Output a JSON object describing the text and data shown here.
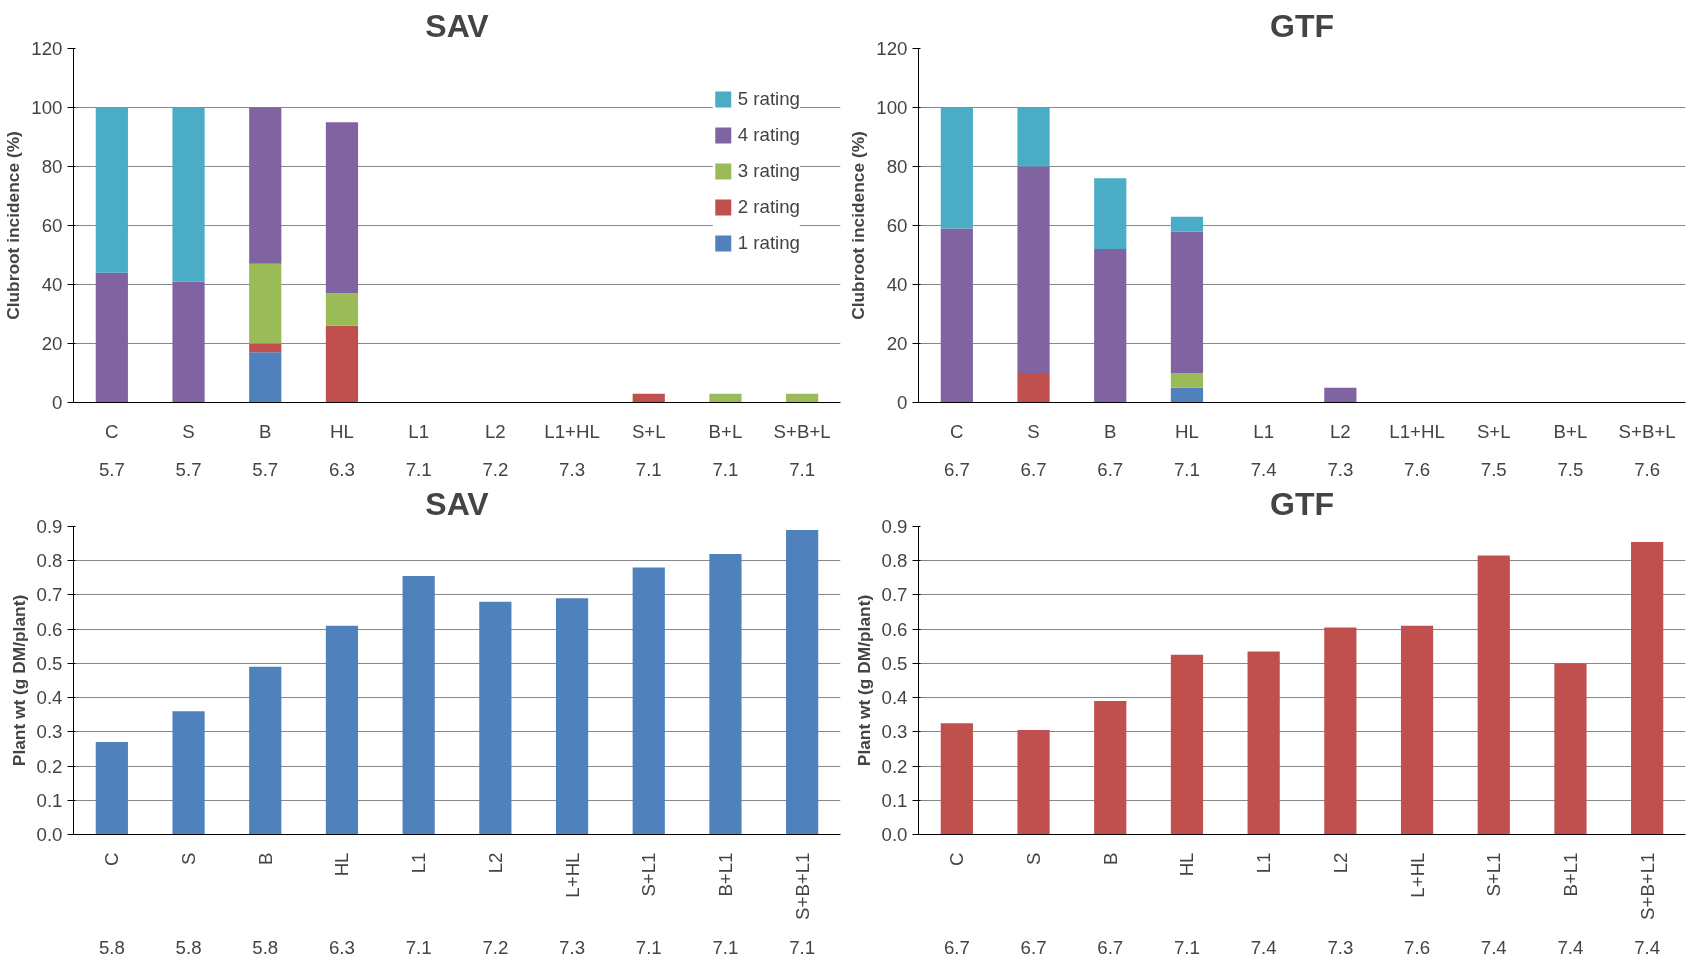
{
  "chart_data": [
    {
      "type": "bar",
      "stacked": true,
      "title": "SAV",
      "ylabel": "Clubroot incidence (%)",
      "categories": [
        "C\n5.7",
        "S\n5.7",
        "B\n5.7",
        "HL\n6.3",
        "L1\n7.1",
        "L2\n7.2",
        "L1+HL\n7.3",
        "S+L\n7.1",
        "B+L\n7.1",
        "S+B+L\n7.1"
      ],
      "ylim": [
        0,
        120
      ],
      "yticks": [
        0,
        20,
        40,
        60,
        80,
        100,
        120
      ],
      "grid": "y",
      "legend": "top right",
      "series": [
        {
          "name": "1 rating",
          "color": "#4f81bd",
          "values": [
            0,
            0,
            17,
            0,
            0,
            0,
            0,
            0,
            0,
            0
          ]
        },
        {
          "name": "2 rating",
          "color": "#c0504d",
          "values": [
            0,
            0,
            3,
            26,
            0,
            0,
            0,
            3,
            0,
            0
          ]
        },
        {
          "name": "3 rating",
          "color": "#9bbb59",
          "values": [
            0,
            0,
            27,
            11,
            0,
            0,
            0,
            0,
            3,
            3
          ]
        },
        {
          "name": "4 rating",
          "color": "#8064a2",
          "values": [
            44,
            41,
            53,
            58,
            0,
            0,
            0,
            0,
            0,
            0
          ]
        },
        {
          "name": "5 rating",
          "color": "#4bacc6",
          "values": [
            56,
            59,
            0,
            0,
            0,
            0,
            0,
            0,
            0,
            0
          ]
        }
      ]
    },
    {
      "type": "bar",
      "stacked": true,
      "title": "GTF",
      "ylabel": "Clubroot incidence (%)",
      "categories": [
        "C\n6.7",
        "S\n6.7",
        "B\n6.7",
        "HL\n7.1",
        "L1\n7.4",
        "L2\n7.3",
        "L1+HL\n7.6",
        "S+L\n7.5",
        "B+L\n7.5",
        "S+B+L\n7.6"
      ],
      "ylim": [
        0,
        120
      ],
      "yticks": [
        0,
        20,
        40,
        60,
        80,
        100,
        120
      ],
      "grid": "y",
      "series": [
        {
          "color": "#4f81bd",
          "values": [
            0,
            0,
            0,
            5,
            0,
            0,
            0,
            0,
            0,
            0
          ]
        },
        {
          "color": "#c0504d",
          "values": [
            0,
            10,
            0,
            0,
            0,
            0,
            0,
            0,
            0,
            0
          ]
        },
        {
          "color": "#9bbb59",
          "values": [
            0,
            0,
            0,
            5,
            0,
            0,
            0,
            0,
            0,
            0
          ]
        },
        {
          "color": "#8064a2",
          "values": [
            59,
            70,
            52,
            48,
            0,
            5,
            0,
            0,
            0,
            0
          ]
        },
        {
          "color": "#4bacc6",
          "values": [
            41,
            20,
            24,
            5,
            0,
            0,
            0,
            0,
            0,
            0
          ]
        }
      ]
    },
    {
      "type": "bar",
      "title": "SAV",
      "ylabel": "Plant wt (g DM/plant)",
      "categories": [
        "C\n5.8",
        "S\n5.8",
        "B\n5.8",
        "HL\n6.3",
        "L1\n7.1",
        "L2\n7.2",
        "L+HL\n7.3",
        "S+L1\n7.1",
        "B+L1\n7.1",
        "S+B+L1\n7.1"
      ],
      "ylim": [
        0,
        0.9
      ],
      "yticks": [
        {
          "value": 0,
          "label": "0.0"
        },
        0.1,
        0.2,
        0.3,
        0.4,
        0.5,
        0.6,
        0.7,
        0.8,
        0.9
      ],
      "grid": "y",
      "series": [
        {
          "color": "#4f81bd",
          "values": [
            0.27,
            0.36,
            0.49,
            0.61,
            0.755,
            0.68,
            0.69,
            0.78,
            0.82,
            0.89
          ]
        }
      ]
    },
    {
      "type": "bar",
      "title": "GTF",
      "ylabel": "Plant wt (g DM/plant)",
      "categories": [
        "C\n6.7",
        "S\n6.7",
        "B\n6.7",
        "HL\n7.1",
        "L1\n7.4",
        "L2\n7.3",
        "L+HL\n7.6",
        "S+L1\n7.4",
        "B+L1\n7.4",
        "S+B+L1\n7.4"
      ],
      "ylim": [
        0,
        0.9
      ],
      "yticks": [
        {
          "value": 0,
          "label": "0.0"
        },
        0.1,
        0.2,
        0.3,
        0.4,
        0.5,
        0.6,
        0.7,
        0.8,
        0.9
      ],
      "grid": "y",
      "series": [
        {
          "color": "#c0504d",
          "values": [
            0.325,
            0.305,
            0.39,
            0.525,
            0.535,
            0.605,
            0.61,
            0.815,
            0.5,
            0.855
          ]
        }
      ]
    }
  ]
}
